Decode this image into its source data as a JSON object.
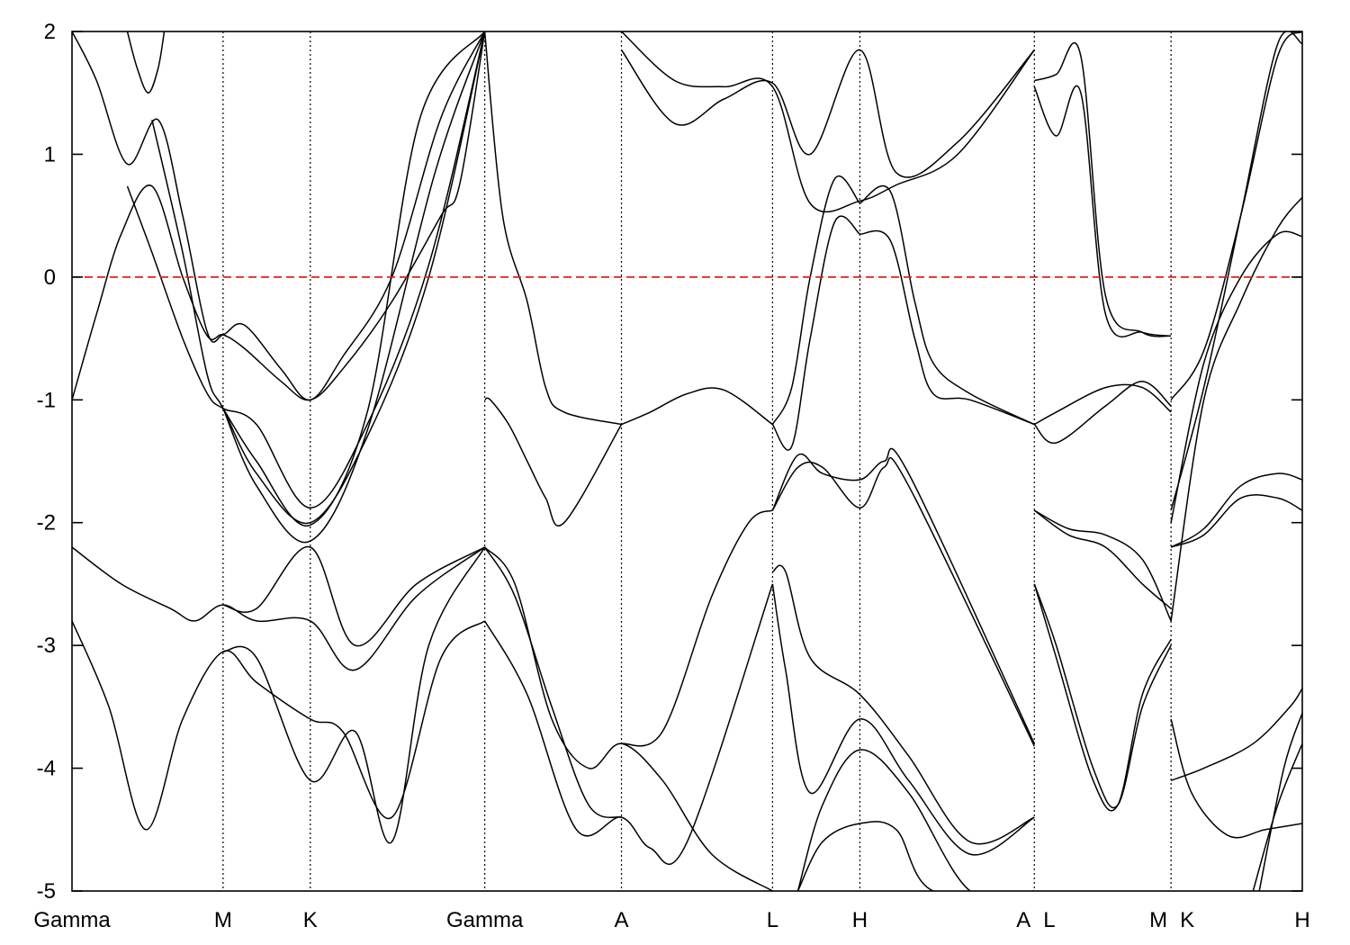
{
  "chart_data": {
    "type": "line",
    "title": "",
    "xlabel": "",
    "ylabel": "",
    "ylim": [
      -5,
      2
    ],
    "yticks": [
      {
        "value": 2,
        "label": "2"
      },
      {
        "value": 1,
        "label": "1"
      },
      {
        "value": 0,
        "label": "0"
      },
      {
        "value": -1,
        "label": "-1"
      },
      {
        "value": -2,
        "label": "-2"
      },
      {
        "value": -3,
        "label": "-3"
      },
      {
        "value": -4,
        "label": "-4"
      },
      {
        "value": -5,
        "label": "-5"
      }
    ],
    "xlim": [
      0,
      1
    ],
    "kpoints": [
      {
        "label": "Gamma",
        "x": 0.0,
        "line": false
      },
      {
        "label": "M",
        "x": 0.1228,
        "line": true
      },
      {
        "label": "K",
        "x": 0.1937,
        "line": true
      },
      {
        "label": "Gamma",
        "x": 0.3355,
        "line": true
      },
      {
        "label": "A",
        "x": 0.4466,
        "line": true
      },
      {
        "label": "L",
        "x": 0.5694,
        "line": true
      },
      {
        "label": "H",
        "x": 0.6404,
        "line": true
      },
      {
        "label": "A",
        "x": 0.7822,
        "line": true
      },
      {
        "label": "L",
        "x": 0.7822,
        "line": false
      },
      {
        "label": "M",
        "x": 0.8933,
        "line": true
      },
      {
        "label": "K",
        "x": 0.8933,
        "line": false
      },
      {
        "label": "H",
        "x": 1.0,
        "line": false
      }
    ],
    "fermi_level": 0,
    "fermi_color": "#e02020",
    "line_color": "#000000",
    "grid": false,
    "legend": "none",
    "series": [
      {
        "x": [
          0,
          0.02,
          0.04,
          0.065,
          0.09,
          0.11,
          0.1228,
          0.14,
          0.17,
          0.1937,
          0.22,
          0.26,
          0.3,
          0.315,
          0.3355
        ],
        "y": [
          -1.0,
          -0.3,
          0.35,
          0.74,
          0.0,
          -0.48,
          -0.47,
          -0.58,
          -0.85,
          -1.0,
          -0.75,
          -0.2,
          0.5,
          0.75,
          2.0
        ]
      },
      {
        "x": [
          0,
          0.02,
          0.045,
          0.07,
          0.09,
          0.11,
          0.1228,
          0.14,
          0.17,
          0.1937,
          0.22,
          0.26,
          0.3,
          0.3355
        ],
        "y": [
          2.0,
          1.6,
          0.92,
          1.28,
          0.5,
          -0.45,
          -0.47,
          -0.39,
          -0.75,
          -1.0,
          -0.65,
          0.0,
          1.3,
          2.0
        ]
      },
      {
        "x": [
          0.045,
          0.053,
          0.062,
          0.07,
          0.075
        ],
        "y": [
          2.0,
          1.7,
          1.5,
          1.7,
          2.0
        ]
      },
      {
        "x": [
          0.045,
          0.065,
          0.09,
          0.11,
          0.1228,
          0.15,
          0.1937,
          0.24,
          0.29,
          0.3355
        ],
        "y": [
          0.74,
          0.2,
          -0.5,
          -0.95,
          -1.07,
          -1.2,
          -1.88,
          -1.2,
          0.1,
          2.0
        ]
      },
      {
        "x": [
          0.065,
          0.09,
          0.11,
          0.1228,
          0.15,
          0.1937,
          0.24,
          0.29,
          0.3355
        ],
        "y": [
          1.28,
          0.2,
          -0.8,
          -1.07,
          -1.6,
          -2.0,
          -1.3,
          0.0,
          2.0
        ]
      },
      {
        "x": [
          0.1228,
          0.15,
          0.1937,
          0.24,
          0.295,
          0.3355
        ],
        "y": [
          -1.07,
          -1.7,
          -2.15,
          -1.25,
          0.85,
          2.0
        ]
      },
      {
        "x": [
          0.1228,
          0.15,
          0.1937,
          0.24,
          0.283,
          0.3355
        ],
        "y": [
          -1.07,
          -1.5,
          -2.02,
          -1.1,
          1.3,
          2.0
        ]
      },
      {
        "x": [
          0.3355,
          0.35,
          0.37,
          0.385,
          0.4,
          0.4466
        ],
        "y": [
          2.0,
          0.5,
          -0.2,
          -0.9,
          -1.1,
          -1.2
        ]
      },
      {
        "x": [
          0.3355,
          0.34,
          0.355,
          0.37,
          0.385,
          0.4,
          0.4466
        ],
        "y": [
          -1.0,
          -1.0,
          -1.2,
          -1.5,
          -1.8,
          -2.0,
          -1.2
        ]
      },
      {
        "x": [
          0.4466,
          0.47,
          0.5,
          0.53,
          0.5694
        ],
        "y": [
          -1.2,
          -1.1,
          -0.95,
          -0.92,
          -1.2
        ]
      },
      {
        "x": [
          0.5694,
          0.585,
          0.6,
          0.62,
          0.6404
        ],
        "y": [
          -1.2,
          -1.38,
          -0.5,
          0.45,
          0.35
        ]
      },
      {
        "x": [
          0.5694,
          0.585,
          0.6,
          0.62,
          0.6404
        ],
        "y": [
          -1.2,
          -0.9,
          0.0,
          0.8,
          0.6
        ]
      },
      {
        "x": [
          0.6404,
          0.665,
          0.685,
          0.7,
          0.73,
          0.7822
        ],
        "y": [
          0.35,
          0.3,
          -0.5,
          -0.95,
          -1.0,
          -1.2
        ]
      },
      {
        "x": [
          0.6404,
          0.665,
          0.685,
          0.7,
          0.73,
          0.7822
        ],
        "y": [
          0.6,
          0.7,
          -0.2,
          -0.7,
          -0.95,
          -1.2
        ]
      },
      {
        "x": [
          0.4466,
          0.49,
          0.53,
          0.5694,
          0.6,
          0.6404,
          0.67,
          0.72,
          0.7822
        ],
        "y": [
          1.85,
          1.25,
          1.45,
          1.58,
          1.0,
          1.85,
          0.85,
          1.1,
          1.85
        ]
      },
      {
        "x": [
          0.4466,
          0.49,
          0.53,
          0.5694,
          0.6,
          0.6404,
          0.67,
          0.72,
          0.7822
        ],
        "y": [
          2.0,
          1.6,
          1.55,
          1.55,
          0.6,
          0.62,
          0.75,
          1.0,
          1.85
        ]
      },
      {
        "x": [
          0.5694,
          0.59,
          0.61,
          0.6404,
          0.66,
          0.68,
          0.7822
        ],
        "y": [
          -1.9,
          -1.45,
          -1.6,
          -1.65,
          -1.5,
          -1.6,
          -3.8
        ]
      },
      {
        "x": [
          0.5694,
          0.59,
          0.61,
          0.6404,
          0.66,
          0.68,
          0.7822
        ],
        "y": [
          -1.9,
          -1.55,
          -1.55,
          -1.88,
          -1.55,
          -1.7,
          -3.82
        ]
      },
      {
        "x": [
          0.4466,
          0.48,
          0.52,
          0.55,
          0.5694
        ],
        "y": [
          -3.8,
          -3.7,
          -2.6,
          -2.0,
          -1.9
        ]
      },
      {
        "x": [
          0.5694,
          0.58,
          0.6,
          0.6404,
          0.68,
          0.73,
          0.7822
        ],
        "y": [
          -2.4,
          -2.4,
          -3.1,
          -3.4,
          -3.9,
          -4.6,
          -4.4
        ]
      },
      {
        "x": [
          0.5694,
          0.58,
          0.6,
          0.6404,
          0.68,
          0.73,
          0.7822
        ],
        "y": [
          -2.5,
          -3.2,
          -4.2,
          -3.6,
          -4.1,
          -4.7,
          -4.4
        ]
      },
      {
        "x": [
          0.59,
          0.61,
          0.6404,
          0.68,
          0.73,
          0.7822
        ],
        "y": [
          -5.0,
          -4.3,
          -3.85,
          -4.2,
          -5.0,
          -5.0
        ]
      },
      {
        "x": [
          0.59,
          0.61,
          0.6404,
          0.67,
          0.7,
          0.7822
        ],
        "y": [
          -5.0,
          -4.6,
          -4.45,
          -4.5,
          -5.0,
          -5.0
        ]
      },
      {
        "x": [
          0,
          0.04,
          0.08,
          0.1,
          0.1228,
          0.15,
          0.1937,
          0.23,
          0.28,
          0.3355
        ],
        "y": [
          -2.2,
          -2.5,
          -2.7,
          -2.8,
          -2.67,
          -2.8,
          -2.8,
          -3.2,
          -2.6,
          -2.2
        ]
      },
      {
        "x": [
          0.1228,
          0.15,
          0.1937,
          0.23,
          0.28,
          0.3355
        ],
        "y": [
          -2.67,
          -2.7,
          -2.2,
          -3.0,
          -2.5,
          -2.2
        ]
      },
      {
        "x": [
          0,
          0.03,
          0.06,
          0.09,
          0.1228,
          0.15,
          0.1937,
          0.22,
          0.26,
          0.3,
          0.3355
        ],
        "y": [
          -2.8,
          -3.5,
          -4.5,
          -3.6,
          -3.05,
          -3.3,
          -3.6,
          -3.7,
          -4.4,
          -3.1,
          -2.8
        ]
      },
      {
        "x": [
          0.1228,
          0.15,
          0.1937,
          0.23,
          0.26,
          0.29,
          0.3355
        ],
        "y": [
          -3.05,
          -3.1,
          -4.1,
          -3.7,
          -4.6,
          -3.0,
          -2.2
        ]
      },
      {
        "x": [
          0.3355,
          0.36,
          0.39,
          0.42,
          0.4466,
          0.48,
          0.52,
          0.5694
        ],
        "y": [
          -2.2,
          -2.5,
          -3.6,
          -4.0,
          -3.8,
          -4.1,
          -4.7,
          -5.0
        ]
      },
      {
        "x": [
          0.3355,
          0.37,
          0.41,
          0.4466,
          0.47,
          0.5,
          0.5694
        ],
        "y": [
          -2.8,
          -3.4,
          -4.5,
          -4.4,
          -4.65,
          -4.6,
          -2.5
        ]
      },
      {
        "x": [
          0.3355,
          0.36,
          0.39,
          0.42,
          0.4466
        ],
        "y": [
          -2.2,
          -2.6,
          -3.5,
          -4.3,
          -4.4
        ]
      },
      {
        "x": [
          0.7822,
          0.8,
          0.82,
          0.84,
          0.87,
          0.8933
        ],
        "y": [
          1.55,
          1.15,
          1.5,
          -0.3,
          -0.45,
          -0.48
        ]
      },
      {
        "x": [
          0.7822,
          0.8,
          0.82,
          0.84,
          0.87,
          0.8933
        ],
        "y": [
          1.6,
          1.65,
          1.8,
          -0.15,
          -0.45,
          -0.48
        ]
      },
      {
        "x": [
          0.7822,
          0.8,
          0.84,
          0.87,
          0.8933
        ],
        "y": [
          -1.2,
          -1.35,
          -1.05,
          -0.85,
          -1.05
        ]
      },
      {
        "x": [
          0.7822,
          0.8,
          0.84,
          0.87,
          0.8933
        ],
        "y": [
          -1.2,
          -1.1,
          -0.9,
          -0.9,
          -1.1
        ]
      },
      {
        "x": [
          0.7822,
          0.81,
          0.84,
          0.87,
          0.8933
        ],
        "y": [
          -1.9,
          -2.05,
          -2.1,
          -2.3,
          -2.8
        ]
      },
      {
        "x": [
          0.7822,
          0.81,
          0.84,
          0.87,
          0.8933
        ],
        "y": [
          -1.9,
          -2.1,
          -2.2,
          -2.5,
          -2.7
        ]
      },
      {
        "x": [
          0.7822,
          0.8,
          0.83,
          0.85,
          0.87,
          0.8933
        ],
        "y": [
          -2.5,
          -3.0,
          -4.0,
          -4.3,
          -3.5,
          -3.0
        ]
      },
      {
        "x": [
          0.7822,
          0.8,
          0.83,
          0.85,
          0.87,
          0.8933
        ],
        "y": [
          -2.5,
          -3.1,
          -4.1,
          -4.3,
          -3.4,
          -2.95
        ]
      },
      {
        "x": [
          0.8933,
          0.92,
          0.95,
          0.98,
          1.0
        ],
        "y": [
          -1.0,
          -0.6,
          0.5,
          1.8,
          2.0
        ]
      },
      {
        "x": [
          0.8933,
          0.92,
          0.95,
          0.98,
          1.0
        ],
        "y": [
          -1.9,
          -0.9,
          0.5,
          1.9,
          1.9
        ]
      },
      {
        "x": [
          0.8933,
          0.92,
          0.95,
          0.98,
          1.0
        ],
        "y": [
          -2.0,
          -0.7,
          0.0,
          0.35,
          0.33
        ]
      },
      {
        "x": [
          0.8933,
          0.92,
          0.95,
          0.98,
          1.0
        ],
        "y": [
          -2.8,
          -1.0,
          -0.2,
          0.4,
          0.65
        ]
      },
      {
        "x": [
          0.8933,
          0.92,
          0.95,
          0.98,
          1.0
        ],
        "y": [
          -2.2,
          -2.05,
          -1.7,
          -1.6,
          -1.65
        ]
      },
      {
        "x": [
          0.8933,
          0.92,
          0.95,
          0.98,
          1.0
        ],
        "y": [
          -2.2,
          -2.1,
          -1.8,
          -1.8,
          -1.9
        ]
      },
      {
        "x": [
          0.8933,
          0.92,
          0.96,
          0.99,
          1.0
        ],
        "y": [
          -4.1,
          -4.0,
          -3.8,
          -3.5,
          -3.35
        ]
      },
      {
        "x": [
          0.8933,
          0.91,
          0.94,
          0.97,
          1.0
        ],
        "y": [
          -3.6,
          -4.2,
          -4.55,
          -4.5,
          -4.45
        ]
      },
      {
        "x": [
          0.96,
          0.98,
          1.0
        ],
        "y": [
          -5.0,
          -4.3,
          -3.8
        ]
      },
      {
        "x": [
          0.965,
          0.985,
          1.0
        ],
        "y": [
          -5.0,
          -4.0,
          -3.55
        ]
      }
    ]
  }
}
